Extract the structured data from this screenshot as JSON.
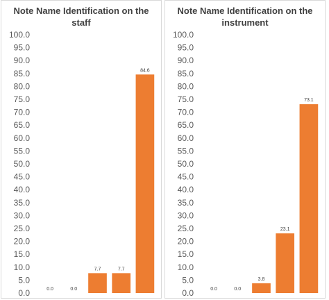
{
  "chart_data": [
    {
      "type": "bar",
      "title": "Note Name Identification on the staff",
      "title_lines": [
        "Note Name Identification on the",
        "staff"
      ],
      "categories": [
        "",
        "",
        "",
        "",
        ""
      ],
      "values": [
        0.0,
        0.0,
        7.7,
        7.7,
        84.6
      ],
      "value_labels": [
        "0.0",
        "0.0",
        "7.7",
        "7.7",
        "84.6"
      ],
      "ylim": [
        0,
        100
      ],
      "ytick_step": 5,
      "yticks": [
        "0.0",
        "5.0",
        "10.0",
        "15.0",
        "20.0",
        "25.0",
        "30.0",
        "35.0",
        "40.0",
        "45.0",
        "50.0",
        "55.0",
        "60.0",
        "65.0",
        "70.0",
        "75.0",
        "80.0",
        "85.0",
        "90.0",
        "95.0",
        "100.0"
      ],
      "xlabel": "",
      "ylabel": "",
      "bar_color": "#ED7D31",
      "grid": false,
      "legend": "none"
    },
    {
      "type": "bar",
      "title": "Note Name Identification on the instrument",
      "title_lines": [
        "Note Name Identification on the",
        "instrument"
      ],
      "categories": [
        "",
        "",
        "",
        "",
        ""
      ],
      "values": [
        0.0,
        0.0,
        3.8,
        23.1,
        73.1
      ],
      "value_labels": [
        "0.0",
        "0.0",
        "3.8",
        "23.1",
        "73.1"
      ],
      "ylim": [
        0,
        100
      ],
      "ytick_step": 5,
      "yticks": [
        "0.0",
        "5.0",
        "10.0",
        "15.0",
        "20.0",
        "25.0",
        "30.0",
        "35.0",
        "40.0",
        "45.0",
        "50.0",
        "55.0",
        "60.0",
        "65.0",
        "70.0",
        "75.0",
        "80.0",
        "85.0",
        "90.0",
        "95.0",
        "100.0"
      ],
      "xlabel": "",
      "ylabel": "",
      "bar_color": "#ED7D31",
      "grid": false,
      "legend": "none"
    }
  ]
}
